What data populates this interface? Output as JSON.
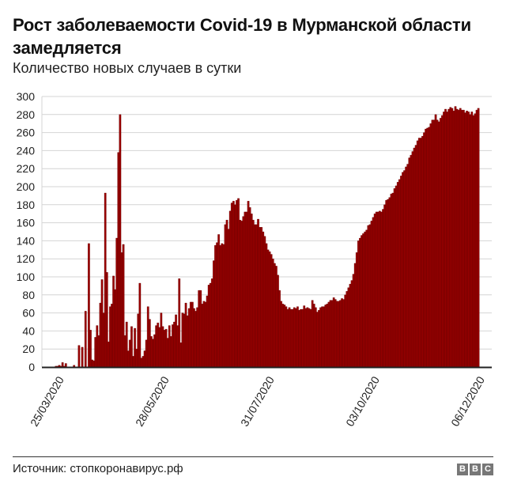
{
  "header": {
    "title": "Рост заболеваемости Covid-19 в Мурманской области замедляется",
    "subtitle": "Количество новых случаев в сутки"
  },
  "footer": {
    "source": "Источник: стопкоронавирус.рф",
    "logo_letters": [
      "B",
      "B",
      "C"
    ]
  },
  "colors": {
    "bar": "#990000",
    "grid": "#d4d4d4",
    "axis": "#222222"
  },
  "chart_data": {
    "type": "bar",
    "title": "Рост заболеваемости Covid-19 в Мурманской области замедляется",
    "subtitle": "Количество новых случаев в сутки",
    "xlabel": "",
    "ylabel": "",
    "ylim": [
      0,
      300
    ],
    "yticks": [
      0,
      20,
      40,
      60,
      80,
      100,
      120,
      140,
      160,
      180,
      200,
      220,
      240,
      260,
      280,
      300
    ],
    "xtick_labels": [
      "25/03/2020",
      "28/05/2020",
      "31/07/2020",
      "03/10/2020",
      "06/12/2020"
    ],
    "xtick_day_index": [
      11,
      75,
      139,
      203,
      267
    ],
    "start_date": "14/03/2020",
    "grid": true,
    "legend": null,
    "values": [
      0,
      0,
      0,
      0,
      0,
      0,
      0,
      0,
      1,
      1,
      2,
      1,
      5,
      1,
      4,
      0,
      0,
      0,
      0,
      2,
      0,
      0,
      24,
      0,
      22,
      0,
      62,
      0,
      137,
      41,
      8,
      7,
      33,
      46,
      35,
      71,
      97,
      60,
      193,
      105,
      28,
      67,
      70,
      101,
      86,
      143,
      238,
      280,
      127,
      136,
      35,
      50,
      18,
      30,
      45,
      12,
      43,
      20,
      59,
      93,
      10,
      12,
      18,
      30,
      67,
      53,
      34,
      31,
      36,
      46,
      49,
      44,
      60,
      45,
      41,
      42,
      32,
      46,
      34,
      47,
      50,
      58,
      46,
      98,
      27,
      60,
      59,
      71,
      57,
      65,
      72,
      72,
      65,
      62,
      66,
      85,
      85,
      70,
      73,
      72,
      79,
      91,
      93,
      98,
      118,
      135,
      138,
      147,
      135,
      137,
      136,
      158,
      163,
      153,
      173,
      182,
      184,
      180,
      185,
      187,
      163,
      162,
      167,
      172,
      172,
      184,
      177,
      170,
      163,
      158,
      158,
      164,
      155,
      155,
      150,
      145,
      137,
      130,
      128,
      125,
      120,
      115,
      112,
      102,
      85,
      73,
      70,
      69,
      67,
      64,
      66,
      64,
      64,
      66,
      65,
      67,
      63,
      64,
      64,
      68,
      65,
      66,
      65,
      64,
      74,
      70,
      66,
      61,
      63,
      66,
      67,
      67,
      69,
      70,
      72,
      74,
      74,
      77,
      75,
      73,
      73,
      74,
      76,
      75,
      80,
      84,
      88,
      92,
      96,
      103,
      115,
      127,
      140,
      143,
      146,
      148,
      150,
      152,
      157,
      158,
      162,
      166,
      170,
      172,
      172,
      173,
      172,
      175,
      180,
      185,
      186,
      188,
      192,
      193,
      198,
      201,
      205,
      208,
      212,
      216,
      218,
      222,
      225,
      232,
      235,
      239,
      243,
      246,
      251,
      254,
      254,
      256,
      260,
      264,
      265,
      266,
      270,
      274,
      274,
      280,
      274,
      272,
      276,
      279,
      283,
      286,
      283,
      286,
      288,
      287,
      284,
      289,
      286,
      285,
      287,
      285,
      285,
      282,
      284,
      283,
      280,
      283,
      279,
      281,
      285,
      287
    ]
  }
}
